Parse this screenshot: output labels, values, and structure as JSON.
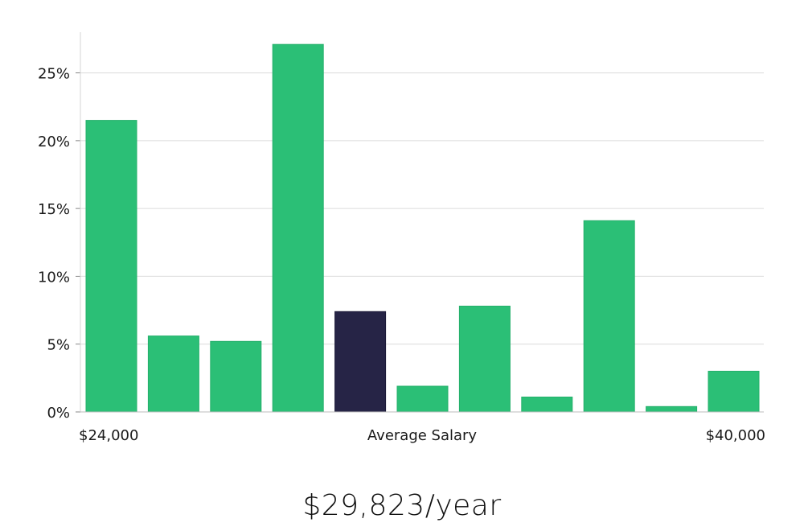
{
  "chart_data": {
    "type": "bar",
    "categories": [
      "1",
      "2",
      "3",
      "4",
      "5",
      "6",
      "7",
      "8",
      "9",
      "10",
      "11"
    ],
    "values": [
      21.5,
      5.6,
      5.2,
      27.1,
      7.4,
      1.9,
      7.8,
      1.1,
      14.1,
      0.4,
      3.0
    ],
    "highlight_index": 4,
    "ylim": [
      0,
      28
    ],
    "yticks": [
      0,
      5,
      10,
      15,
      20,
      25
    ],
    "ytick_labels": [
      "0%",
      "5%",
      "10%",
      "15%",
      "20%",
      "25%"
    ],
    "x_range_labels": {
      "min": "$24,000",
      "center": "Average Salary",
      "max": "$40,000"
    },
    "grid": true,
    "colors": {
      "bar": "#2bbf76",
      "highlight": "#262446",
      "grid": "#dcdcdc",
      "axis": "#cccccc"
    }
  },
  "summary": {
    "salary": "$29,823/year"
  }
}
